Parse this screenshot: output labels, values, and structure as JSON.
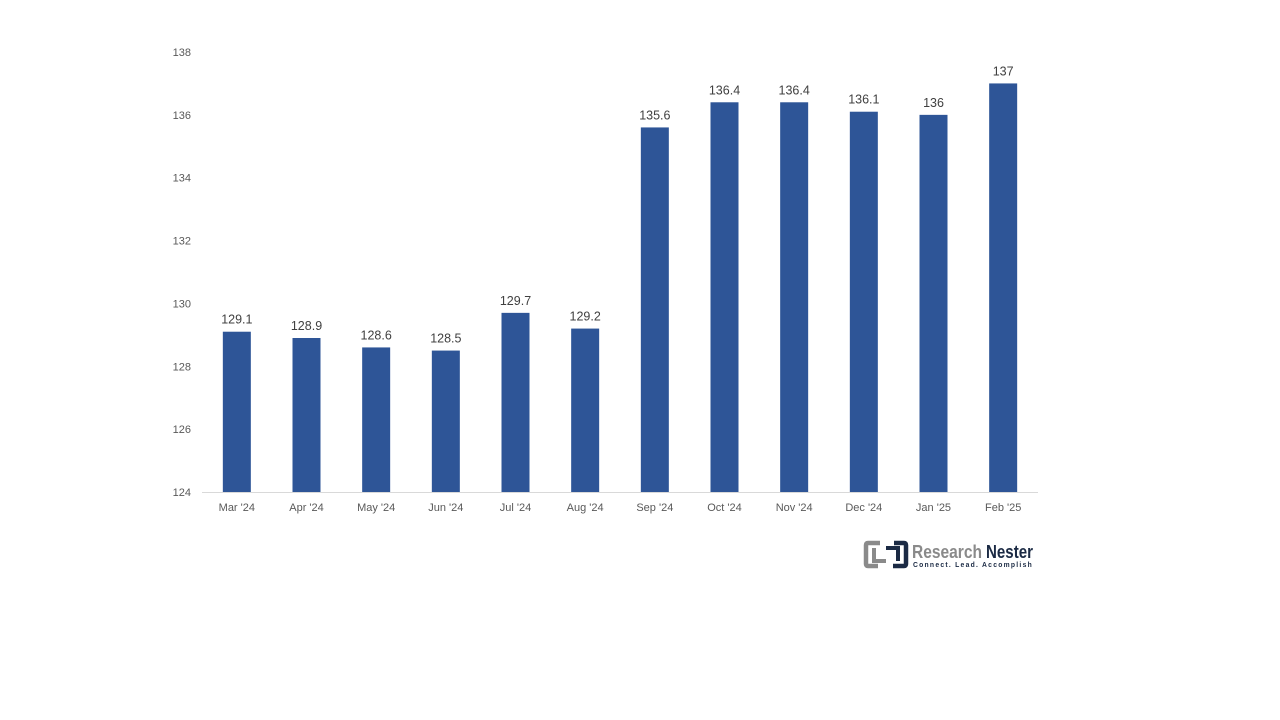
{
  "chart_data": {
    "type": "bar",
    "categories": [
      "Mar '24",
      "Apr '24",
      "May '24",
      "Jun '24",
      "Jul '24",
      "Aug '24",
      "Sep '24",
      "Oct '24",
      "Nov '24",
      "Dec '24",
      "Jan '25",
      "Feb '25"
    ],
    "values": [
      129.1,
      128.9,
      128.6,
      128.5,
      129.7,
      129.2,
      135.6,
      136.4,
      136.4,
      136.1,
      136,
      137
    ],
    "value_labels": [
      "129.1",
      "128.9",
      "128.6",
      "128.5",
      "129.7",
      "129.2",
      "135.6",
      "136.4",
      "136.4",
      "136.1",
      "136",
      "137"
    ],
    "y_ticks": [
      124,
      126,
      128,
      130,
      132,
      134,
      136,
      138
    ],
    "y_tick_labels": [
      "124",
      "126",
      "128",
      "130",
      "132",
      "134",
      "136",
      "138"
    ],
    "ylim": [
      124,
      138
    ],
    "grid": false,
    "legend": "none",
    "bar_color": "#2e5597",
    "axis_color": "#d9d9d9"
  },
  "logo": {
    "word1": "Research",
    "word2": "Nester",
    "tagline": "Connect. Lead. Accomplish",
    "color_gray": "#8a8a8a",
    "color_dark": "#1b2a44"
  }
}
